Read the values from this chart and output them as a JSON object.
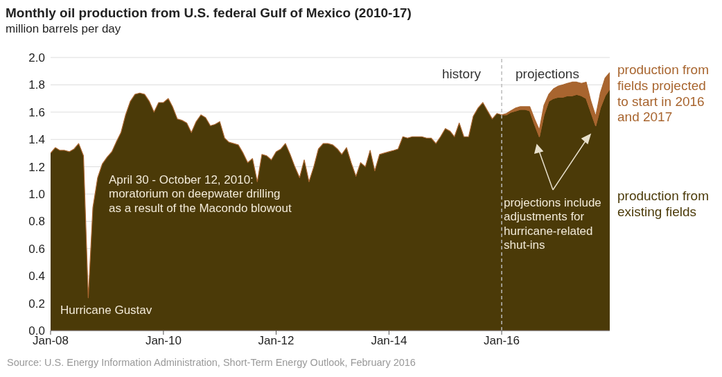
{
  "chart_data": {
    "type": "area",
    "stacked": true,
    "title": "Monthly oil production from U.S. federal Gulf of Mexico (2010-17)",
    "subtitle": "million barrels per day",
    "x": [
      "2008-01",
      "2008-02",
      "2008-03",
      "2008-04",
      "2008-05",
      "2008-06",
      "2008-07",
      "2008-08",
      "2008-09",
      "2008-10",
      "2008-11",
      "2008-12",
      "2009-01",
      "2009-02",
      "2009-03",
      "2009-04",
      "2009-05",
      "2009-06",
      "2009-07",
      "2009-08",
      "2009-09",
      "2009-10",
      "2009-11",
      "2009-12",
      "2010-01",
      "2010-02",
      "2010-03",
      "2010-04",
      "2010-05",
      "2010-06",
      "2010-07",
      "2010-08",
      "2010-09",
      "2010-10",
      "2010-11",
      "2010-12",
      "2011-01",
      "2011-02",
      "2011-03",
      "2011-04",
      "2011-05",
      "2011-06",
      "2011-07",
      "2011-08",
      "2011-09",
      "2011-10",
      "2011-11",
      "2011-12",
      "2012-01",
      "2012-02",
      "2012-03",
      "2012-04",
      "2012-05",
      "2012-06",
      "2012-07",
      "2012-08",
      "2012-09",
      "2012-10",
      "2012-11",
      "2012-12",
      "2013-01",
      "2013-02",
      "2013-03",
      "2013-04",
      "2013-05",
      "2013-06",
      "2013-07",
      "2013-08",
      "2013-09",
      "2013-10",
      "2013-11",
      "2013-12",
      "2014-01",
      "2014-02",
      "2014-03",
      "2014-04",
      "2014-05",
      "2014-06",
      "2014-07",
      "2014-08",
      "2014-09",
      "2014-10",
      "2014-11",
      "2014-12",
      "2015-01",
      "2015-02",
      "2015-03",
      "2015-04",
      "2015-05",
      "2015-06",
      "2015-07",
      "2015-08",
      "2015-09",
      "2015-10",
      "2015-11",
      "2015-12",
      "2016-01",
      "2016-02",
      "2016-03",
      "2016-04",
      "2016-05",
      "2016-06",
      "2016-07",
      "2016-08",
      "2016-09",
      "2016-10",
      "2016-11",
      "2016-12",
      "2017-01",
      "2017-02",
      "2017-03",
      "2017-04",
      "2017-05",
      "2017-06",
      "2017-07",
      "2017-08",
      "2017-09",
      "2017-10",
      "2017-11",
      "2017-12"
    ],
    "series": [
      {
        "name": "production from existing fields",
        "color": "#4b3a08",
        "values": [
          1.3,
          1.34,
          1.32,
          1.32,
          1.31,
          1.33,
          1.37,
          1.28,
          0.24,
          0.9,
          1.12,
          1.22,
          1.27,
          1.31,
          1.38,
          1.45,
          1.58,
          1.68,
          1.73,
          1.74,
          1.73,
          1.68,
          1.6,
          1.67,
          1.67,
          1.7,
          1.64,
          1.55,
          1.54,
          1.52,
          1.45,
          1.53,
          1.58,
          1.56,
          1.5,
          1.51,
          1.53,
          1.41,
          1.38,
          1.37,
          1.36,
          1.3,
          1.23,
          1.26,
          1.09,
          1.29,
          1.28,
          1.25,
          1.31,
          1.33,
          1.37,
          1.29,
          1.2,
          1.12,
          1.25,
          1.09,
          1.2,
          1.33,
          1.37,
          1.37,
          1.36,
          1.33,
          1.29,
          1.34,
          1.23,
          1.13,
          1.23,
          1.2,
          1.32,
          1.17,
          1.29,
          1.3,
          1.31,
          1.32,
          1.33,
          1.42,
          1.41,
          1.42,
          1.42,
          1.42,
          1.41,
          1.41,
          1.37,
          1.42,
          1.48,
          1.46,
          1.42,
          1.52,
          1.42,
          1.42,
          1.57,
          1.63,
          1.67,
          1.61,
          1.55,
          1.59,
          1.58,
          1.58,
          1.6,
          1.61,
          1.62,
          1.62,
          1.61,
          1.51,
          1.42,
          1.58,
          1.68,
          1.7,
          1.71,
          1.71,
          1.72,
          1.72,
          1.73,
          1.72,
          1.7,
          1.6,
          1.5,
          1.63,
          1.72,
          1.77
        ]
      },
      {
        "name": "production from fields projected to start in 2016 and 2017",
        "color": "#a8652f",
        "values": [
          null,
          null,
          null,
          null,
          null,
          null,
          null,
          null,
          null,
          null,
          null,
          null,
          null,
          null,
          null,
          null,
          null,
          null,
          null,
          null,
          null,
          null,
          null,
          null,
          null,
          null,
          null,
          null,
          null,
          null,
          null,
          null,
          null,
          null,
          null,
          null,
          null,
          null,
          null,
          null,
          null,
          null,
          null,
          null,
          null,
          null,
          null,
          null,
          null,
          null,
          null,
          null,
          null,
          null,
          null,
          null,
          null,
          null,
          null,
          null,
          null,
          null,
          null,
          null,
          null,
          null,
          null,
          null,
          null,
          null,
          null,
          null,
          null,
          null,
          null,
          null,
          null,
          null,
          null,
          null,
          null,
          null,
          null,
          null,
          null,
          null,
          null,
          null,
          null,
          null,
          null,
          null,
          null,
          null,
          null,
          null,
          0.0,
          0.01,
          0.01,
          0.02,
          0.02,
          0.02,
          0.03,
          0.04,
          0.05,
          0.07,
          0.05,
          0.07,
          0.08,
          0.09,
          0.09,
          0.1,
          0.09,
          0.09,
          0.12,
          0.08,
          0.07,
          0.11,
          0.13,
          0.12
        ]
      }
    ],
    "xlim": [
      "2008-01",
      "2017-12"
    ],
    "xticks": [
      {
        "value": "2008-01",
        "label": "Jan-08"
      },
      {
        "value": "2010-01",
        "label": "Jan-10"
      },
      {
        "value": "2012-01",
        "label": "Jan-12"
      },
      {
        "value": "2014-01",
        "label": "Jan-14"
      },
      {
        "value": "2016-01",
        "label": "Jan-16"
      }
    ],
    "ylim": [
      0,
      2
    ],
    "yticks": [
      {
        "value": 0,
        "label": "0.0"
      },
      {
        "value": 0.2,
        "label": "0.2"
      },
      {
        "value": 0.4,
        "label": "0.4"
      },
      {
        "value": 0.6,
        "label": "0.6"
      },
      {
        "value": 0.8,
        "label": "0.8"
      },
      {
        "value": 1,
        "label": "1.0"
      },
      {
        "value": 1.2,
        "label": "1.2"
      },
      {
        "value": 1.4,
        "label": "1.4"
      },
      {
        "value": 1.6,
        "label": "1.6"
      },
      {
        "value": 1.8,
        "label": "1.8"
      },
      {
        "value": 2,
        "label": "2.0"
      }
    ],
    "grid": "y",
    "legend": false,
    "ref_lines": [
      {
        "axis": "x",
        "value": "2016-01",
        "color": "#bbbbbb",
        "line_style": "dashed"
      }
    ],
    "annotations": [
      "history",
      "projections",
      "Hurricane Gustav",
      "April 30 - October 12, 2010: moratorium on deepwater drilling as a result of the Macondo blowout",
      "projections include adjustments for hurricane-related shut-ins",
      "Source: U.S. Energy Information Administration, Short-Term Energy Outlook, February 2016"
    ]
  }
}
